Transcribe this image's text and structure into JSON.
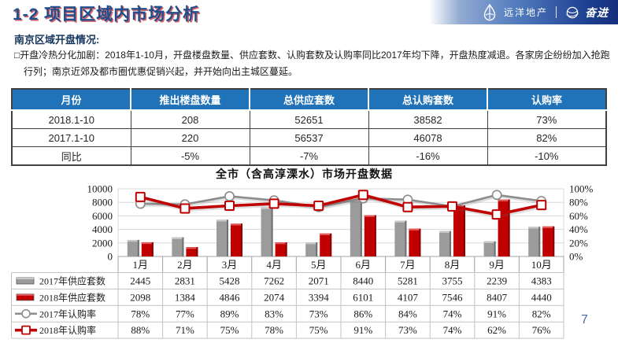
{
  "header": {
    "title": "1-2 项目区域内市场分析",
    "brand": {
      "name": "远洋地产",
      "slogan": "奋进"
    }
  },
  "section": {
    "label": "南京区域开盘情况:",
    "bullet_char": "□",
    "bullet": "开盘冷热分化加剧：2018年1-10月，开盘楼盘数量、供应套数、认购套数及认购率同比2017年均下降，开盘热度减退。各家房企纷纷加入抢跑行列；南京近郊及都市圈优惠促销兴起，并开始向出主城区蔓延。"
  },
  "summary_table": {
    "headers": [
      "月份",
      "推出楼盘数量",
      "总供应套数",
      "总认购套数",
      "认购率"
    ],
    "rows": [
      [
        "2018.1-10",
        "208",
        "52651",
        "38582",
        "73%"
      ],
      [
        "2017.1-10",
        "220",
        "56537",
        "46078",
        "82%"
      ],
      [
        "同比",
        "-5%",
        "-7%",
        "-16%",
        "-10%"
      ]
    ]
  },
  "chart_data": {
    "type": "bar+line combo with data table",
    "title": "全市（含高淳溧水）市场开盘数据",
    "categories": [
      "1月",
      "2月",
      "3月",
      "4月",
      "5月",
      "6月",
      "7月",
      "8月",
      "9月",
      "10月"
    ],
    "series": [
      {
        "name": "2017年供应套数",
        "type": "bar",
        "axis": "left",
        "color": "#9b9b9b",
        "light": "#c9c9c9",
        "dark": "#6f6f6f",
        "values": [
          2445,
          2831,
          5428,
          7262,
          2071,
          8440,
          5281,
          3755,
          2239,
          4383
        ]
      },
      {
        "name": "2018年供应套数",
        "type": "bar",
        "axis": "left",
        "color": "#c00000",
        "light": "#e25959",
        "dark": "#8a0000",
        "values": [
          2098,
          1384,
          4846,
          2074,
          3394,
          6101,
          4107,
          7546,
          8407,
          4440
        ]
      },
      {
        "name": "2017年认购率",
        "type": "line",
        "axis": "right",
        "marker": "circle",
        "color": "#8c8c8c",
        "width": 2.6,
        "values": [
          78,
          77,
          89,
          83,
          73,
          86,
          84,
          74,
          91,
          82
        ]
      },
      {
        "name": "2018年认购率",
        "type": "line",
        "axis": "right",
        "marker": "square",
        "color": "#c00000",
        "width": 3.6,
        "values": [
          88,
          71,
          75,
          78,
          75,
          91,
          73,
          74,
          62,
          76
        ]
      }
    ],
    "left_axis": {
      "min": 0,
      "max": 10000,
      "step": 2000,
      "ticks": [
        "10000",
        "8000",
        "6000",
        "4000",
        "2000",
        "0"
      ]
    },
    "right_axis": {
      "min": 0,
      "max": 100,
      "step": 20,
      "ticks": [
        "100%",
        "80%",
        "60%",
        "40%",
        "20%",
        "0%"
      ]
    },
    "legend_position": "data-table-left",
    "grid": true
  },
  "page_number": "7",
  "colors": {
    "table_header_blue": "#2173b9",
    "title_blue": "#1e4e8c",
    "bar_2017": "#9b9b9b",
    "bar_2018": "#c00000",
    "banner_dark_blue": "#152f7a"
  }
}
